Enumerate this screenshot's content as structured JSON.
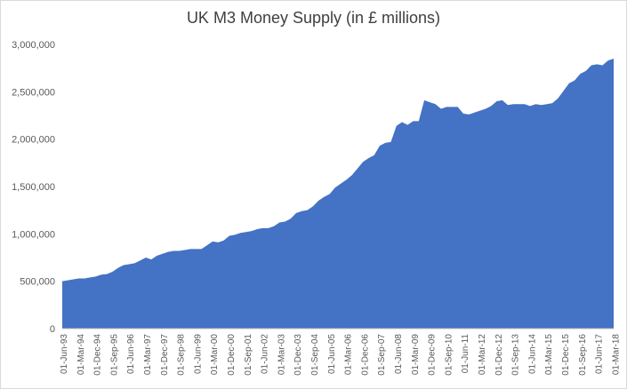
{
  "chart_data": {
    "type": "area",
    "title": "UK M3 Money Supply (in £ millions)",
    "xlabel": "",
    "ylabel": "",
    "ylim": [
      0,
      3000000
    ],
    "grid": false,
    "legend": "none",
    "color": "#4472c4",
    "y_ticks": [
      0,
      500000,
      1000000,
      1500000,
      2000000,
      2500000,
      3000000
    ],
    "y_tick_labels": [
      "0",
      "500,000",
      "1,000,000",
      "1,500,000",
      "2,000,000",
      "2,500,000",
      "3,000,000"
    ],
    "x_tick_labels": [
      "01-Jun-93",
      "01-Mar-94",
      "01-Dec-94",
      "01-Sep-95",
      "01-Jun-96",
      "01-Mar-97",
      "01-Dec-97",
      "01-Sep-98",
      "01-Jun-99",
      "01-Mar-00",
      "01-Dec-00",
      "01-Sep-01",
      "01-Jun-02",
      "01-Mar-03",
      "01-Dec-03",
      "01-Sep-04",
      "01-Jun-05",
      "01-Mar-06",
      "01-Dec-06",
      "01-Sep-07",
      "01-Jun-08",
      "01-Mar-09",
      "01-Dec-09",
      "01-Sep-10",
      "01-Jun-11",
      "01-Mar-12",
      "01-Dec-12",
      "01-Sep-13",
      "01-Jun-14",
      "01-Mar-15",
      "01-Dec-15",
      "01-Sep-16",
      "01-Jun-17",
      "01-Mar-18"
    ],
    "series": [
      {
        "values": [
          500000,
          510000,
          520000,
          530000,
          530000,
          540000,
          550000,
          570000,
          575000,
          600000,
          640000,
          670000,
          680000,
          690000,
          720000,
          750000,
          730000,
          770000,
          790000,
          810000,
          820000,
          820000,
          830000,
          840000,
          840000,
          840000,
          880000,
          920000,
          910000,
          930000,
          980000,
          990000,
          1010000,
          1020000,
          1030000,
          1050000,
          1060000,
          1060000,
          1080000,
          1120000,
          1130000,
          1160000,
          1220000,
          1240000,
          1250000,
          1290000,
          1350000,
          1390000,
          1420000,
          1490000,
          1530000,
          1570000,
          1620000,
          1690000,
          1760000,
          1800000,
          1830000,
          1930000,
          1960000,
          1970000,
          2140000,
          2180000,
          2150000,
          2190000,
          2190000,
          2410000,
          2390000,
          2370000,
          2320000,
          2340000,
          2340000,
          2340000,
          2270000,
          2260000,
          2280000,
          2300000,
          2320000,
          2350000,
          2400000,
          2410000,
          2360000,
          2370000,
          2370000,
          2370000,
          2350000,
          2370000,
          2360000,
          2370000,
          2380000,
          2430000,
          2510000,
          2590000,
          2620000,
          2690000,
          2720000,
          2780000,
          2790000,
          2780000,
          2830000,
          2850000
        ]
      }
    ]
  }
}
